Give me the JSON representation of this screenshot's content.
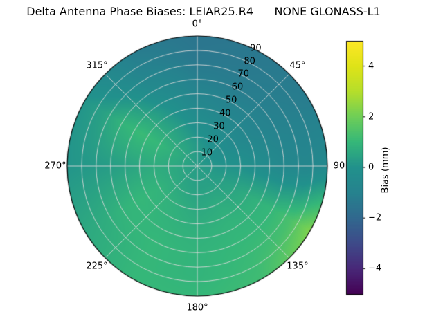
{
  "chart_data": {
    "type": "heatmap",
    "projection": "polar",
    "title": "Delta Antenna Phase Biases: LEIAR25.R4      NONE GLONASS-L1",
    "angular_ticks": {
      "degrees": [
        0,
        45,
        90,
        135,
        180,
        225,
        270,
        315
      ],
      "labels": [
        "0°",
        "45°",
        "90",
        "135°",
        "180°",
        "225°",
        "270°",
        "315°"
      ]
    },
    "radial_ticks": {
      "zenith_deg": [
        10,
        20,
        30,
        40,
        50,
        60,
        70,
        80,
        90
      ],
      "labels": [
        "10",
        "20",
        "30",
        "40",
        "50",
        "60",
        "70",
        "80",
        "90"
      ],
      "label_angle_deg": 25
    },
    "colorbar": {
      "label": "Bias (mm)",
      "vmin": -5,
      "vmax": 5,
      "tick_values": [
        4,
        2,
        0,
        -2,
        -4
      ],
      "tick_labels": [
        "4",
        "2",
        "0",
        "−2",
        "−4"
      ],
      "colormap": "viridis",
      "stops": [
        [
          0.0,
          "#440154"
        ],
        [
          0.1,
          "#482878"
        ],
        [
          0.2,
          "#3e4a89"
        ],
        [
          0.3,
          "#31688e"
        ],
        [
          0.4,
          "#26828e"
        ],
        [
          0.5,
          "#21918c"
        ],
        [
          0.6,
          "#35b779"
        ],
        [
          0.7,
          "#6ece58"
        ],
        [
          0.8,
          "#b5de2b"
        ],
        [
          0.9,
          "#dfe318"
        ],
        [
          1.0,
          "#fde725"
        ]
      ]
    },
    "grid": {
      "azimuth_deg": [
        0,
        30,
        60,
        90,
        120,
        150,
        180,
        210,
        240,
        270,
        300,
        330,
        360
      ],
      "zenith_deg": [
        0,
        15,
        30,
        45,
        60,
        75,
        90
      ],
      "bias_mm": [
        [
          0.3,
          0.3,
          0.3,
          0.3,
          0.3,
          0.3,
          0.3,
          0.3,
          0.3,
          0.3,
          0.3,
          0.3,
          0.3
        ],
        [
          0.2,
          0.0,
          -0.1,
          0.1,
          0.3,
          0.4,
          0.4,
          0.5,
          0.6,
          0.6,
          0.7,
          0.5,
          0.2
        ],
        [
          -0.2,
          -0.4,
          -0.5,
          0.0,
          0.5,
          0.7,
          0.6,
          0.8,
          0.9,
          0.7,
          1.0,
          0.4,
          -0.2
        ],
        [
          -0.7,
          -0.9,
          -0.8,
          -0.3,
          0.8,
          0.9,
          0.8,
          0.9,
          1.0,
          0.5,
          1.1,
          0.1,
          -0.7
        ],
        [
          -1.1,
          -1.2,
          -1.0,
          -0.6,
          1.0,
          1.0,
          0.9,
          1.0,
          0.9,
          0.3,
          0.9,
          -0.4,
          -1.1
        ],
        [
          -1.4,
          -1.3,
          -1.1,
          -0.7,
          1.4,
          1.1,
          0.9,
          1.0,
          0.7,
          0.2,
          0.4,
          -0.9,
          -1.4
        ],
        [
          -1.5,
          -1.4,
          -1.2,
          -0.5,
          2.3,
          1.2,
          1.0,
          1.0,
          0.6,
          0.1,
          0.1,
          -1.2,
          -1.5
        ]
      ]
    },
    "styles": {
      "grid_line_color": "#d9d9d9",
      "outline_color": "#000000",
      "background": "#ffffff"
    }
  }
}
